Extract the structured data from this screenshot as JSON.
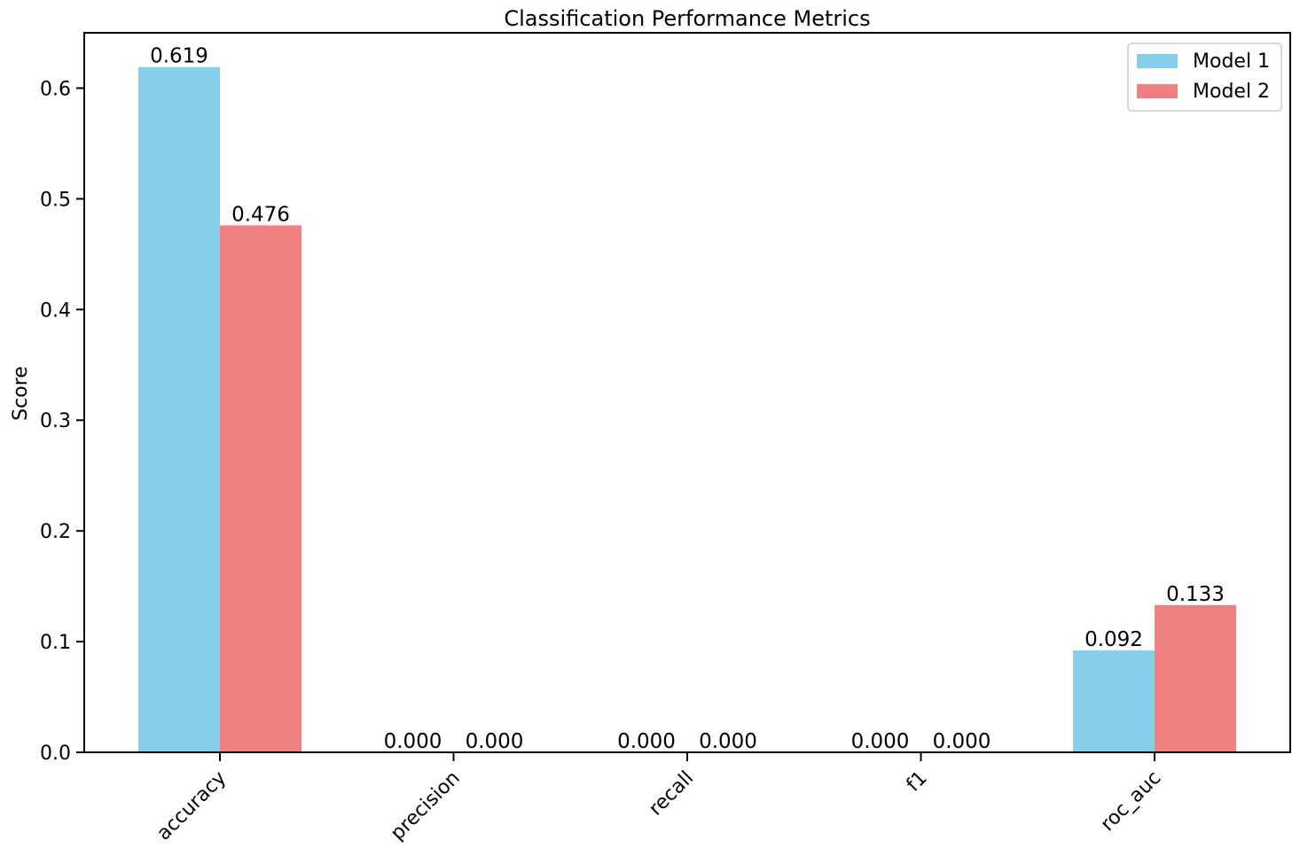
{
  "chart_data": {
    "type": "bar",
    "title": "Classification Performance Metrics",
    "xlabel": "",
    "ylabel": "Score",
    "categories": [
      "accuracy",
      "precision",
      "recall",
      "f1",
      "roc_auc"
    ],
    "series": [
      {
        "name": "Model 1",
        "color": "#87CEEB",
        "values": [
          0.619,
          0.0,
          0.0,
          0.0,
          0.092
        ],
        "labels": [
          "0.619",
          "0.000",
          "0.000",
          "0.000",
          "0.092"
        ]
      },
      {
        "name": "Model 2",
        "color": "#F08080",
        "values": [
          0.476,
          0.0,
          0.0,
          0.0,
          0.133
        ],
        "labels": [
          "0.476",
          "0.000",
          "0.000",
          "0.000",
          "0.133"
        ]
      }
    ],
    "ylim": [
      0,
      0.65
    ],
    "yticks": [
      0.0,
      0.1,
      0.2,
      0.3,
      0.4,
      0.5,
      0.6
    ],
    "ytick_labels": [
      "0.0",
      "0.1",
      "0.2",
      "0.3",
      "0.4",
      "0.5",
      "0.6"
    ],
    "xtick_rotation": 45,
    "grid": false,
    "legend": "top-right"
  }
}
